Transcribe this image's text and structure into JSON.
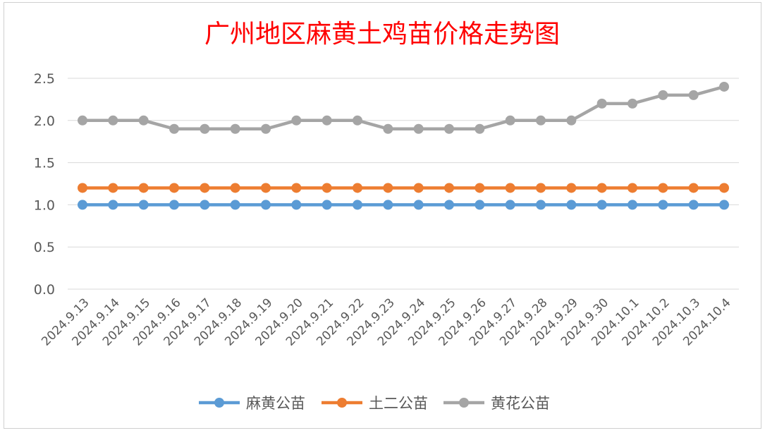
{
  "chart_data": {
    "type": "line",
    "title": "广州地区麻黄土鸡苗价格走势图",
    "title_color": "#ff0000",
    "categories": [
      "2024.9.13",
      "2024.9.14",
      "2024.9.15",
      "2024.9.16",
      "2024.9.17",
      "2024.9.18",
      "2024.9.19",
      "2024.9.20",
      "2024.9.21",
      "2024.9.22",
      "2024.9.23",
      "2024.9.24",
      "2024.9.25",
      "2024.9.26",
      "2024.9.27",
      "2024.9.28",
      "2024.9.29",
      "2024.9.30",
      "2024.10.1",
      "2024.10.2",
      "2024.10.3",
      "2024.10.4"
    ],
    "series": [
      {
        "name": "麻黄公苗",
        "color": "#5b9bd5",
        "values": [
          1.0,
          1.0,
          1.0,
          1.0,
          1.0,
          1.0,
          1.0,
          1.0,
          1.0,
          1.0,
          1.0,
          1.0,
          1.0,
          1.0,
          1.0,
          1.0,
          1.0,
          1.0,
          1.0,
          1.0,
          1.0,
          1.0
        ]
      },
      {
        "name": "土二公苗",
        "color": "#ed7d31",
        "values": [
          1.2,
          1.2,
          1.2,
          1.2,
          1.2,
          1.2,
          1.2,
          1.2,
          1.2,
          1.2,
          1.2,
          1.2,
          1.2,
          1.2,
          1.2,
          1.2,
          1.2,
          1.2,
          1.2,
          1.2,
          1.2,
          1.2
        ]
      },
      {
        "name": "黄花公苗",
        "color": "#a5a5a5",
        "values": [
          2.0,
          2.0,
          2.0,
          1.9,
          1.9,
          1.9,
          1.9,
          2.0,
          2.0,
          2.0,
          1.9,
          1.9,
          1.9,
          1.9,
          2.0,
          2.0,
          2.0,
          2.2,
          2.2,
          2.3,
          2.3,
          2.4
        ]
      }
    ],
    "ylim": [
      0,
      2.5
    ],
    "yticks": [
      "0.0",
      "0.5",
      "1.0",
      "1.5",
      "2.0",
      "2.5"
    ],
    "grid": true,
    "legend_position": "bottom",
    "gridline_color": "#d9d9d9"
  }
}
